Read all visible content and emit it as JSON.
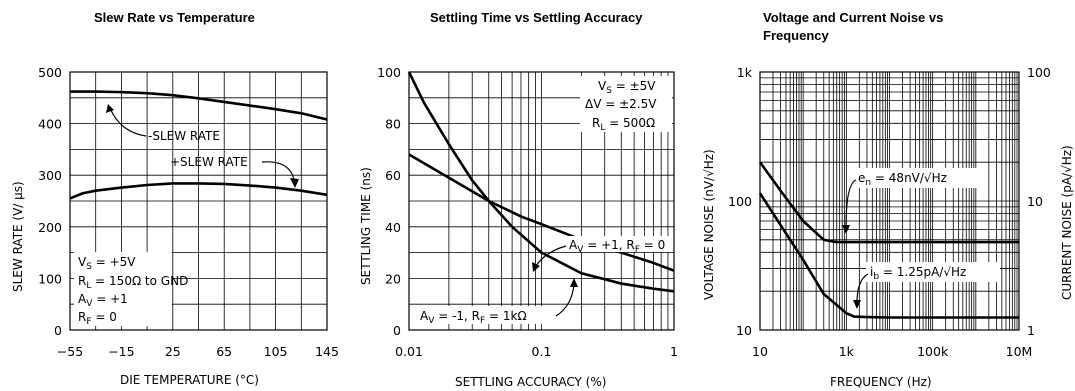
{
  "charts": [
    {
      "title": "Slew Rate vs Temperature",
      "xlabel": "DIE TEMPERATURE (°C)",
      "ylabel": "SLEW RATE (V/ μs)",
      "xticks": [
        "-55",
        "-15",
        "25",
        "65",
        "105",
        "145"
      ],
      "yticks": [
        "0",
        "100",
        "200",
        "300",
        "400",
        "500"
      ],
      "annotations": {
        "neg": "-SLEW RATE",
        "pos": "+SLEW RATE"
      },
      "conditions": [
        "V_S = +5V",
        "R_L = 150Ω to GND",
        "A_V = +1",
        "R_F = 0"
      ]
    },
    {
      "title": "Settling Time vs Settling Accuracy",
      "xlabel": "SETTLING ACCURACY (%)",
      "ylabel": "SETTLING TIME (ns)",
      "xticks": [
        "0.01",
        "0.1",
        "1"
      ],
      "yticks": [
        "0",
        "20",
        "40",
        "60",
        "80",
        "100"
      ],
      "conditions": [
        "V_S = ±5V",
        "ΔV = ±2.5V",
        "R_L = 500Ω"
      ],
      "annotations": {
        "a": "A_V = +1, R_F = 0",
        "b": "A_V = -1, R_F = 1kΩ"
      }
    },
    {
      "title": "Voltage and Current Noise vs",
      "title2": "Frequency",
      "xlabel": "FREQUENCY (Hz)",
      "ylabel": "VOLTAGE NOISE (nV/√Hz)",
      "y2label": "CURRENT NOISE (pA/√Hz)",
      "xticks": [
        "10",
        "1k",
        "100k",
        "10M"
      ],
      "yticks": [
        "10",
        "100",
        "1k"
      ],
      "y2ticks": [
        "1",
        "10",
        "100"
      ],
      "annotations": {
        "en": "e_n = 48nV/√Hz",
        "ib": "i_b = 1.25pA/√Hz"
      }
    }
  ],
  "chart_data": [
    {
      "type": "line",
      "title": "Slew Rate vs Temperature",
      "xlabel": "DIE TEMPERATURE (°C)",
      "ylabel": "SLEW RATE (V/μs)",
      "xlim": [
        -55,
        145
      ],
      "ylim": [
        0,
        500
      ],
      "grid": true,
      "series": [
        {
          "name": "-SLEW RATE",
          "x": [
            -55,
            -35,
            -15,
            5,
            25,
            45,
            65,
            85,
            105,
            125,
            145
          ],
          "values": [
            462,
            462,
            461,
            459,
            455,
            449,
            442,
            435,
            428,
            420,
            408
          ]
        },
        {
          "name": "+SLEW RATE",
          "x": [
            -55,
            -45,
            -35,
            -15,
            5,
            25,
            45,
            65,
            85,
            105,
            125,
            145
          ],
          "values": [
            255,
            265,
            270,
            276,
            281,
            284,
            284,
            283,
            280,
            276,
            270,
            262
          ]
        }
      ]
    },
    {
      "type": "line",
      "title": "Settling Time vs Settling Accuracy",
      "xlabel": "SETTLING ACCURACY (%)",
      "ylabel": "SETTLING TIME (ns)",
      "xscale": "log",
      "xlim": [
        0.01,
        1
      ],
      "ylim": [
        0,
        100
      ],
      "grid": true,
      "series": [
        {
          "name": "A_V = +1, R_F = 0",
          "x": [
            0.01,
            0.02,
            0.04,
            0.07,
            0.1,
            0.2,
            0.4,
            0.7,
            1
          ],
          "values": [
            68,
            59,
            50,
            44,
            41,
            35,
            30,
            26,
            23
          ]
        },
        {
          "name": "A_V = -1, R_F = 1kΩ",
          "x": [
            0.01,
            0.013,
            0.02,
            0.03,
            0.04,
            0.06,
            0.1,
            0.2,
            0.4,
            0.7,
            1
          ],
          "values": [
            100,
            88,
            72,
            58,
            50,
            40,
            30,
            22,
            18,
            16,
            15
          ]
        }
      ]
    },
    {
      "type": "line",
      "title": "Voltage and Current Noise vs Frequency",
      "xlabel": "FREQUENCY (Hz)",
      "ylabel": "VOLTAGE NOISE (nV/√Hz)",
      "y2label": "CURRENT NOISE (pA/√Hz)",
      "xscale": "log",
      "yscale": "log",
      "xlim": [
        10,
        10000000
      ],
      "ylim": [
        10,
        1000
      ],
      "y2lim": [
        1,
        100
      ],
      "grid": true,
      "series": [
        {
          "name": "e_n = 48nV/√Hz",
          "axis": "left",
          "x": [
            10,
            30,
            100,
            300,
            600,
            1000,
            10000,
            100000,
            1000000,
            10000000
          ],
          "values": [
            200,
            120,
            70,
            50,
            48,
            48,
            48,
            48,
            48,
            48
          ]
        },
        {
          "name": "i_b = 1.25pA/√Hz",
          "axis": "right",
          "x": [
            10,
            30,
            100,
            300,
            1000,
            1500,
            3000,
            10000,
            100000,
            1000000,
            10000000
          ],
          "values": [
            11.5,
            6.5,
            3.5,
            1.9,
            1.35,
            1.27,
            1.26,
            1.25,
            1.25,
            1.25,
            1.25
          ]
        }
      ]
    }
  ]
}
